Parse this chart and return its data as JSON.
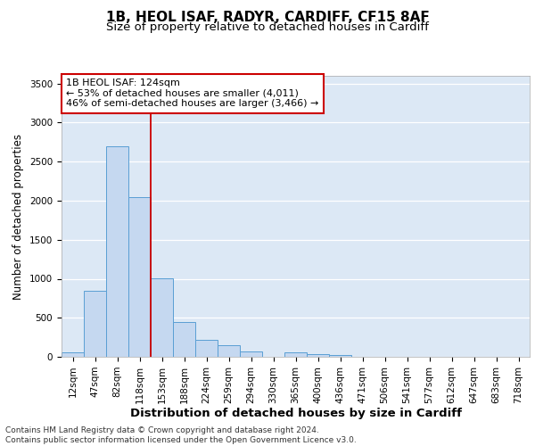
{
  "title_line1": "1B, HEOL ISAF, RADYR, CARDIFF, CF15 8AF",
  "title_line2": "Size of property relative to detached houses in Cardiff",
  "xlabel": "Distribution of detached houses by size in Cardiff",
  "ylabel": "Number of detached properties",
  "categories": [
    "12sqm",
    "47sqm",
    "82sqm",
    "118sqm",
    "153sqm",
    "188sqm",
    "224sqm",
    "259sqm",
    "294sqm",
    "330sqm",
    "365sqm",
    "400sqm",
    "436sqm",
    "471sqm",
    "506sqm",
    "541sqm",
    "577sqm",
    "612sqm",
    "647sqm",
    "683sqm",
    "718sqm"
  ],
  "values": [
    55,
    850,
    2700,
    2050,
    1005,
    450,
    215,
    150,
    65,
    0,
    55,
    40,
    25,
    0,
    0,
    0,
    0,
    0,
    0,
    0,
    0
  ],
  "bar_color": "#c5d8f0",
  "bar_edge_color": "#5a9fd4",
  "vline_color": "#cc0000",
  "vline_x": 3.5,
  "annotation_text": "1B HEOL ISAF: 124sqm\n← 53% of detached houses are smaller (4,011)\n46% of semi-detached houses are larger (3,466) →",
  "annotation_box_facecolor": "white",
  "annotation_box_edgecolor": "#cc0000",
  "ylim": [
    0,
    3600
  ],
  "yticks": [
    0,
    500,
    1000,
    1500,
    2000,
    2500,
    3000,
    3500
  ],
  "background_color": "#dce8f5",
  "footer_text": "Contains HM Land Registry data © Crown copyright and database right 2024.\nContains public sector information licensed under the Open Government Licence v3.0.",
  "title_fontsize": 11,
  "subtitle_fontsize": 9.5,
  "tick_fontsize": 7.5,
  "ylabel_fontsize": 8.5,
  "xlabel_fontsize": 9.5,
  "annotation_fontsize": 8,
  "footer_fontsize": 6.5
}
